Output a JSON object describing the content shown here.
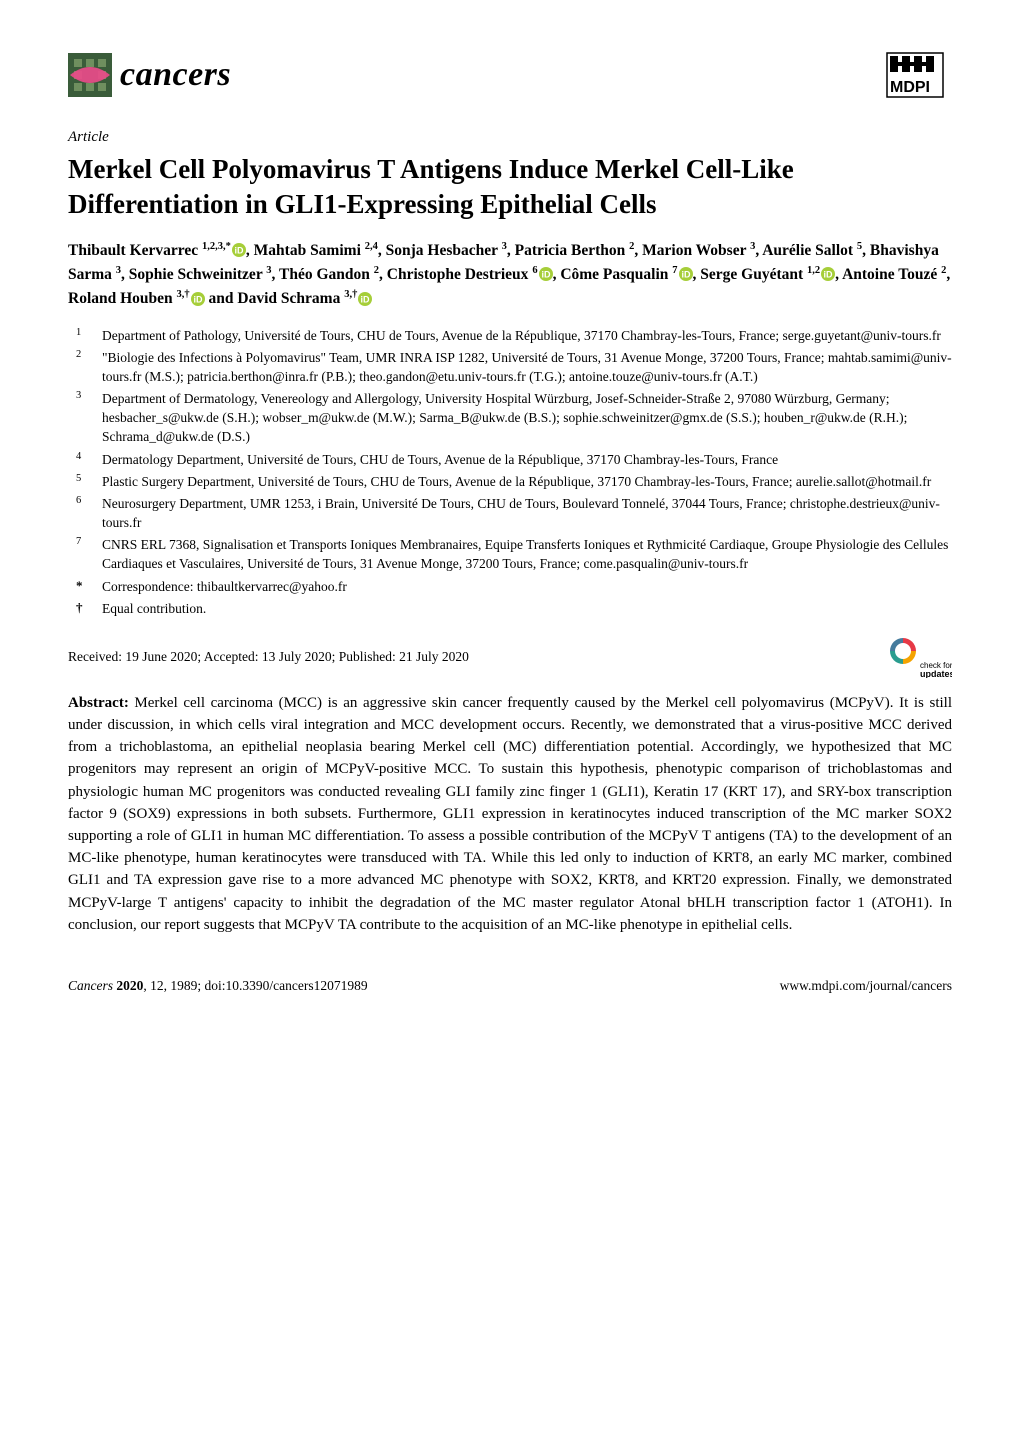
{
  "header": {
    "journal_name": "cancers",
    "logo": {
      "bg_color": "#3a5c3a",
      "ribbon_color": "#e94b8a",
      "size": 44
    },
    "mdpi": {
      "text": "MDPI",
      "width": 62,
      "height": 44,
      "icon_color": "#000000"
    }
  },
  "article_type": "Article",
  "title": "Merkel Cell Polyomavirus T Antigens Induce Merkel Cell-Like Differentiation in GLI1-Expressing Epithelial Cells",
  "authors_html_parts": [
    {
      "t": "Thibault Kervarrec ",
      "sup": "1,2,3,",
      "star": true,
      "orcid": true
    },
    {
      "t": ", Mahtab Samimi ",
      "sup": "2,4"
    },
    {
      "t": ", Sonja Hesbacher ",
      "sup": "3"
    },
    {
      "t": ", Patricia Berthon ",
      "sup": "2"
    },
    {
      "t": ", Marion Wobser ",
      "sup": "3"
    },
    {
      "t": ", Aurélie Sallot ",
      "sup": "5"
    },
    {
      "t": ", Bhavishya Sarma ",
      "sup": "3"
    },
    {
      "t": ", Sophie Schweinitzer ",
      "sup": "3"
    },
    {
      "t": ", Théo Gandon ",
      "sup": "2"
    },
    {
      "t": ", Christophe Destrieux ",
      "sup": "6",
      "orcid": true
    },
    {
      "t": ", Côme Pasqualin ",
      "sup": "7",
      "orcid": true
    },
    {
      "t": ", Serge Guyétant ",
      "sup": "1,2",
      "orcid": true
    },
    {
      "t": ", Antoine Touzé ",
      "sup": "2"
    },
    {
      "t": ", Roland Houben ",
      "sup": "3,†",
      "orcid": true
    },
    {
      "t": " and David Schrama ",
      "sup": "3,†",
      "orcid": true
    }
  ],
  "orcid_color": "#a6ce39",
  "affiliations": [
    {
      "num": "1",
      "text": "Department of Pathology, Université de Tours, CHU de Tours, Avenue de la République, 37170 Chambray-les-Tours, France; serge.guyetant@univ-tours.fr"
    },
    {
      "num": "2",
      "text": "\"Biologie des Infections à Polyomavirus\" Team, UMR INRA ISP 1282, Université de Tours, 31 Avenue Monge, 37200 Tours, France; mahtab.samimi@univ-tours.fr (M.S.); patricia.berthon@inra.fr (P.B.); theo.gandon@etu.univ-tours.fr (T.G.); antoine.touze@univ-tours.fr (A.T.)"
    },
    {
      "num": "3",
      "text": "Department of Dermatology, Venereology and Allergology, University Hospital Würzburg, Josef-Schneider-Straße 2, 97080 Würzburg, Germany; hesbacher_s@ukw.de (S.H.); wobser_m@ukw.de (M.W.); Sarma_B@ukw.de (B.S.); sophie.schweinitzer@gmx.de (S.S.); houben_r@ukw.de (R.H.); Schrama_d@ukw.de (D.S.)"
    },
    {
      "num": "4",
      "text": "Dermatology Department, Université de Tours, CHU de Tours, Avenue de la République, 37170 Chambray-les-Tours, France"
    },
    {
      "num": "5",
      "text": "Plastic Surgery Department, Université de Tours, CHU de Tours, Avenue de la République, 37170 Chambray-les-Tours, France; aurelie.sallot@hotmail.fr"
    },
    {
      "num": "6",
      "text": "Neurosurgery Department, UMR 1253, i Brain, Université De Tours, CHU de Tours, Boulevard Tonnelé, 37044 Tours, France; christophe.destrieux@univ-tours.fr"
    },
    {
      "num": "7",
      "text": "CNRS ERL 7368, Signalisation et Transports Ioniques Membranaires, Equipe Transferts Ioniques et Rythmicité Cardiaque, Groupe Physiologie des Cellules Cardiaques et Vasculaires, Université de Tours, 31 Avenue Monge, 37200 Tours, France; come.pasqualin@univ-tours.fr"
    }
  ],
  "notes": [
    {
      "sym": "*",
      "text": "Correspondence: thibaultkervarrec@yahoo.fr"
    },
    {
      "sym": "†",
      "text": "Equal contribution."
    }
  ],
  "dates": "Received: 19 June 2020; Accepted: 13 July 2020; Published: 21 July 2020",
  "updates_badge": {
    "label1": "check for",
    "label2": "updates",
    "arrow_colors": [
      "#e63946",
      "#f4a300",
      "#2a9d8f",
      "#264653"
    ]
  },
  "abstract_label": "Abstract:",
  "abstract_body": " Merkel cell carcinoma (MCC) is an aggressive skin cancer frequently caused by the Merkel cell polyomavirus (MCPyV). It is still under discussion, in which cells viral integration and MCC development occurs. Recently, we demonstrated that a virus-positive MCC derived from a trichoblastoma, an epithelial neoplasia bearing Merkel cell (MC) differentiation potential. Accordingly, we hypothesized that MC progenitors may represent an origin of MCPyV-positive MCC. To sustain this hypothesis, phenotypic comparison of trichoblastomas and physiologic human MC progenitors was conducted revealing GLI family zinc finger 1 (GLI1), Keratin 17 (KRT 17), and SRY-box transcription factor 9 (SOX9) expressions in both subsets. Furthermore, GLI1 expression in keratinocytes induced transcription of the MC marker SOX2 supporting a role of GLI1 in human MC differentiation. To assess a possible contribution of the MCPyV T antigens (TA) to the development of an MC-like phenotype, human keratinocytes were transduced with TA. While this led only to induction of KRT8, an early MC marker, combined GLI1 and TA expression gave rise to a more advanced MC phenotype with SOX2, KRT8, and KRT20 expression. Finally, we demonstrated MCPyV-large T antigens' capacity to inhibit the degradation of the MC master regulator Atonal bHLH transcription factor 1 (ATOH1). In conclusion, our report suggests that MCPyV TA contribute to the acquisition of an MC-like phenotype in epithelial cells.",
  "footer": {
    "left_italic": "Cancers ",
    "left_bold": "2020",
    "left_rest": ", 12, 1989; doi:10.3390/cancers12071989",
    "right": "www.mdpi.com/journal/cancers"
  }
}
